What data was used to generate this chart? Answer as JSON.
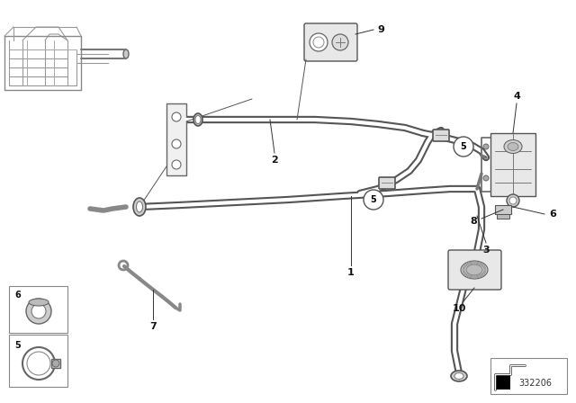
{
  "bg_color": "#ffffff",
  "lc": "#555555",
  "lc2": "#888888",
  "dc": "#222222",
  "fig_width": 6.4,
  "fig_height": 4.48,
  "dpi": 100,
  "part_number": "332206",
  "border_color": "#cccccc"
}
